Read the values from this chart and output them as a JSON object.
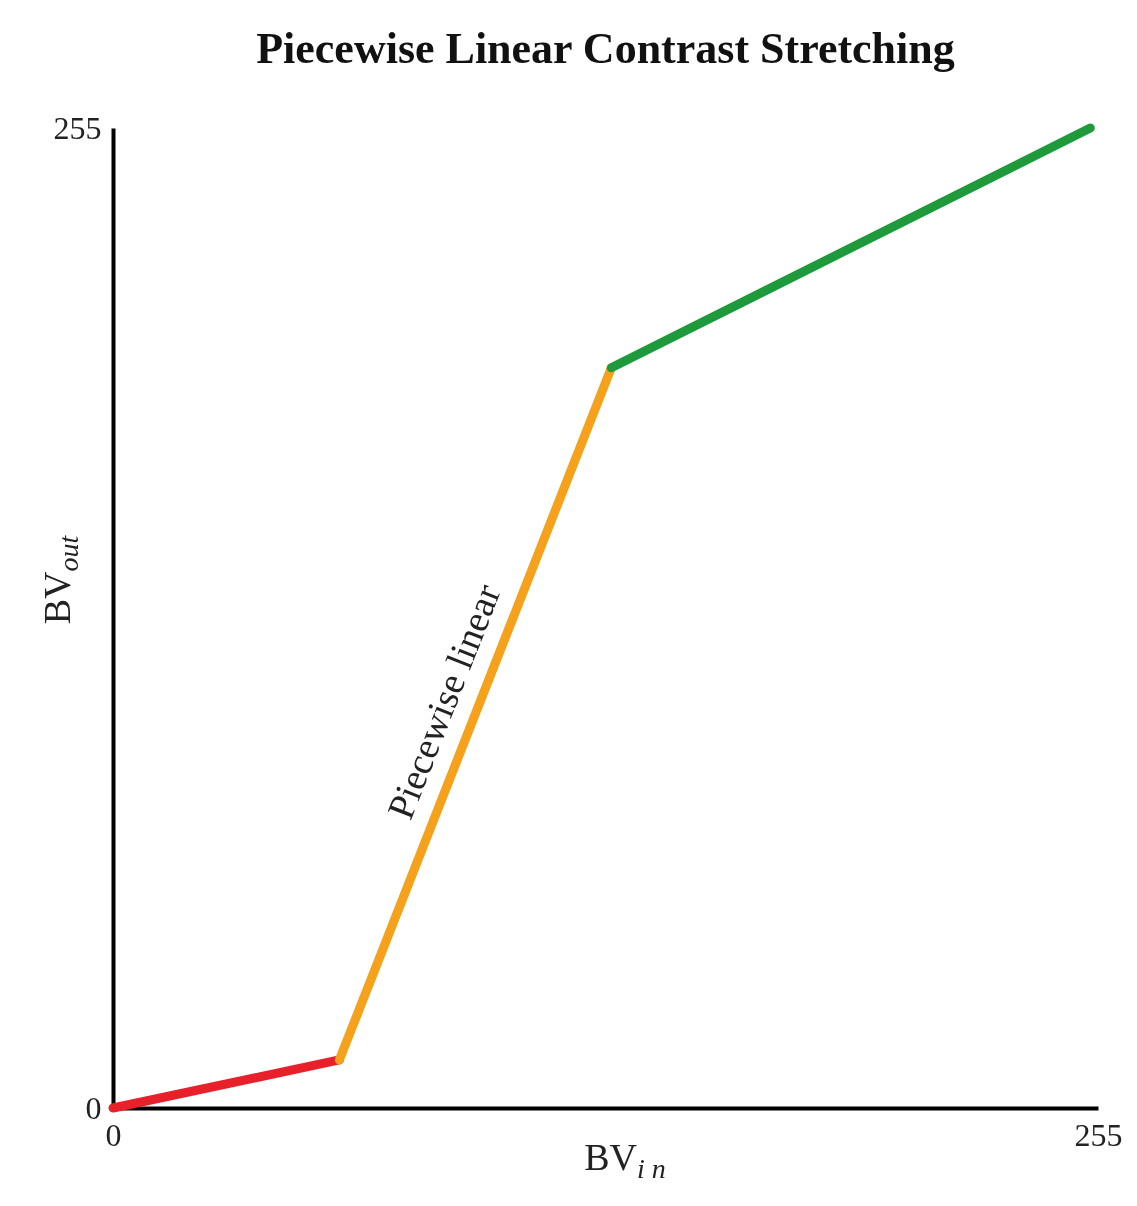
{
  "chart_data": {
    "type": "line",
    "title": "Piecewise Linear Contrast Stretching",
    "xlabel": "BV$_{i n}$",
    "ylabel": "BV$_{out}$",
    "xlim": [
      0,
      255
    ],
    "ylim": [
      0,
      255
    ],
    "xticks": [
      0,
      255
    ],
    "yticks": [
      0,
      255
    ],
    "grid": false,
    "marker": "none",
    "line_style": "solid",
    "series": [
      {
        "color": "#e8202a",
        "x": [
          0,
          58.6
        ],
        "values": [
          0,
          12.5
        ]
      },
      {
        "color": "#f5a11c",
        "x": [
          58.6,
          129
        ],
        "values": [
          12.5,
          192.6
        ]
      },
      {
        "color": "#1e9a3c",
        "x": [
          129,
          253
        ],
        "values": [
          192.6,
          255
        ]
      }
    ],
    "annotations": [
      "Piecewise linear"
    ]
  }
}
